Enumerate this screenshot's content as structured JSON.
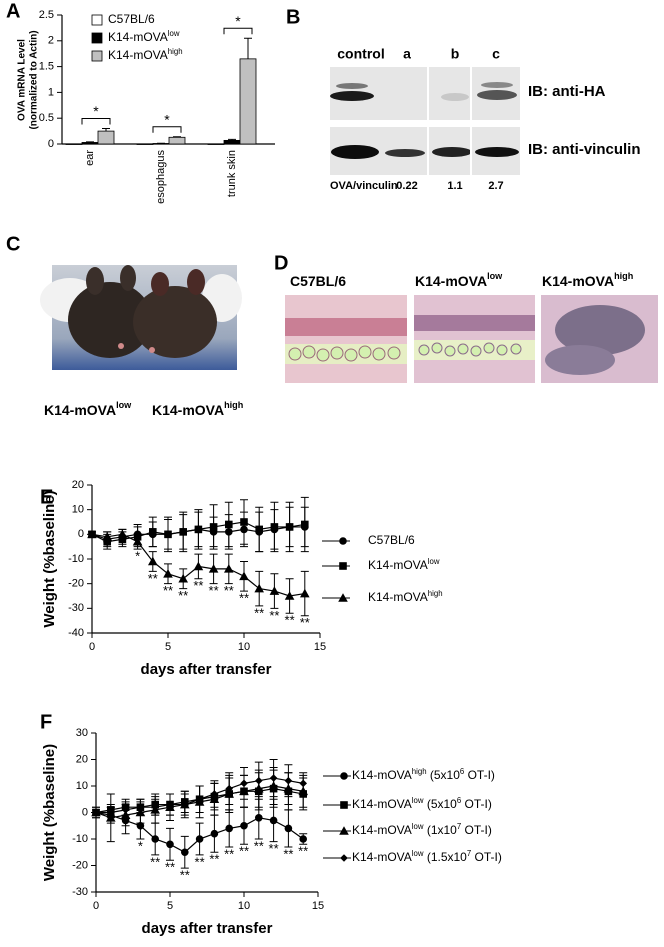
{
  "panels": [
    "A",
    "B",
    "C",
    "D",
    "E",
    "F"
  ],
  "chart_data": [
    {
      "type": "bar",
      "ylabel": [
        "OVA mRNA Level",
        "(normalized to Actin)"
      ],
      "categories": [
        "ear",
        "esophagus",
        "trunk skin"
      ],
      "series": [
        {
          "name_parts": [
            "C57BL/6"
          ],
          "color": "#ffffff",
          "values": [
            0,
            0,
            0
          ]
        },
        {
          "name_parts": [
            "K14-mOVA",
            "low"
          ],
          "color": "#000000",
          "values": [
            0.03,
            0.01,
            0.07
          ],
          "errors": [
            0.01,
            0.005,
            0.02
          ]
        },
        {
          "name_parts": [
            "K14-mOVA",
            "high"
          ],
          "color": "#c0c0c0",
          "values": [
            0.25,
            0.13,
            1.65
          ],
          "errors": [
            0.05,
            0.01,
            0.4
          ]
        }
      ],
      "significance": [
        "*",
        "*",
        "*"
      ],
      "ylim": [
        0,
        2.5
      ],
      "yticks": [
        0,
        0.5,
        1,
        1.5,
        2,
        2.5
      ]
    },
    {
      "type": "line",
      "xlabel": "days after transfer",
      "ylabel": "Weight (%baseline)",
      "x": [
        0,
        1,
        2,
        3,
        4,
        5,
        6,
        7,
        8,
        9,
        10,
        11,
        12,
        13,
        14
      ],
      "series": [
        {
          "name_parts": [
            "C57BL/6"
          ],
          "color": "#000000",
          "marker": "circle",
          "values": [
            0,
            -2,
            -1,
            0,
            0,
            0,
            1,
            2,
            1,
            1,
            2,
            1,
            2,
            3,
            3
          ],
          "errors": [
            1,
            3,
            3,
            4,
            5,
            6,
            7,
            7,
            6,
            7,
            7,
            8,
            8,
            8,
            8
          ]
        },
        {
          "name_parts": [
            "K14-mOVA",
            "low"
          ],
          "color": "#000000",
          "marker": "square",
          "values": [
            0,
            -3,
            -2,
            -1,
            1,
            0,
            1,
            2,
            3,
            4,
            5,
            2,
            3,
            3,
            4
          ],
          "errors": [
            1,
            3,
            3,
            4,
            6,
            7,
            8,
            8,
            9,
            9,
            9,
            9,
            10,
            10,
            11
          ]
        },
        {
          "name_parts": [
            "K14-mOVA",
            "high"
          ],
          "color": "#000000",
          "marker": "triangle",
          "values": [
            0,
            -1,
            0,
            -3,
            -11,
            -16,
            -18,
            -13,
            -14,
            -14,
            -17,
            -22,
            -23,
            -25,
            -24
          ],
          "errors": [
            1,
            2,
            2,
            3,
            4,
            4,
            4,
            5,
            6,
            6,
            6,
            7,
            7,
            7,
            9
          ]
        }
      ],
      "significance": [
        null,
        null,
        null,
        "*",
        "**",
        "**",
        "**",
        "**",
        "**",
        "**",
        "**",
        "**",
        "**",
        "**",
        "**"
      ],
      "xlim": [
        0,
        15
      ],
      "xticks": [
        0,
        5,
        10,
        15
      ],
      "ylim": [
        -40,
        20
      ],
      "yticks": [
        -40,
        -30,
        -20,
        -10,
        0,
        10,
        20
      ]
    },
    {
      "type": "line",
      "xlabel": "days after transfer",
      "ylabel": "Weight (%baseline)",
      "x": [
        0,
        1,
        2,
        3,
        4,
        5,
        6,
        7,
        8,
        9,
        10,
        11,
        12,
        13,
        14
      ],
      "series": [
        {
          "name_parts": [
            "K14-mOVA",
            "high",
            " (5x10",
            "6",
            " OT-I)"
          ],
          "color": "#000000",
          "marker": "circle",
          "values": [
            0,
            -1,
            -3,
            -5,
            -10,
            -12,
            -15,
            -10,
            -8,
            -6,
            -5,
            -2,
            -3,
            -6,
            -10
          ],
          "errors": [
            2,
            3,
            5,
            5,
            6,
            6,
            6,
            6,
            7,
            7,
            7,
            8,
            8,
            7,
            2
          ]
        },
        {
          "name_parts": [
            "K14-mOVA",
            "low",
            " (5x10",
            "6",
            " OT-I)"
          ],
          "color": "#000000",
          "marker": "square",
          "values": [
            0,
            1,
            2,
            2,
            3,
            3,
            4,
            5,
            6,
            7,
            8,
            8,
            9,
            8,
            7
          ],
          "errors": [
            1,
            2,
            3,
            3,
            4,
            4,
            4,
            5,
            5,
            6,
            6,
            7,
            7,
            7,
            6
          ]
        },
        {
          "name_parts": [
            "K14-mOVA",
            "low",
            " (1x10",
            "7",
            " OT-I)"
          ],
          "color": "#000000",
          "marker": "triangle",
          "values": [
            0,
            -2,
            -1,
            0,
            1,
            2,
            3,
            4,
            5,
            7,
            8,
            9,
            10,
            9,
            8
          ],
          "errors": [
            2,
            9,
            4,
            4,
            5,
            5,
            5,
            6,
            6,
            7,
            6,
            7,
            7,
            6,
            6
          ]
        },
        {
          "name_parts": [
            "K14-mOVA",
            "low",
            " (1.5x10",
            "7",
            " OT-I)"
          ],
          "color": "#000000",
          "marker": "diamond",
          "values": [
            0,
            0,
            1,
            2,
            2,
            3,
            3,
            5,
            7,
            9,
            11,
            12,
            13,
            12,
            11
          ],
          "errors": [
            1,
            2,
            3,
            3,
            3,
            4,
            4,
            5,
            5,
            6,
            6,
            7,
            7,
            6,
            4
          ]
        }
      ],
      "significance": [
        null,
        null,
        null,
        "*",
        "**",
        "**",
        "**",
        "**",
        "**",
        "**",
        "**",
        "**",
        "**",
        "**",
        "**"
      ],
      "xlim": [
        0,
        15
      ],
      "xticks": [
        0,
        5,
        10,
        15
      ],
      "ylim": [
        -30,
        30
      ],
      "yticks": [
        -30,
        -20,
        -10,
        0,
        10,
        20,
        30
      ]
    }
  ],
  "blot": {
    "lanes": [
      "control",
      "a",
      "b",
      "c"
    ],
    "antibodies": [
      "IB: anti-HA",
      "IB: anti-vinculin"
    ],
    "ratio_label": "OVA/vinculin",
    "ratios": [
      0.22,
      1.1,
      2.7
    ]
  },
  "photo": {
    "captions": [
      [
        "K14-mOVA",
        "low"
      ],
      [
        "K14-mOVA",
        "high"
      ]
    ]
  },
  "histology": {
    "labels": [
      [
        "C57BL/6"
      ],
      [
        "K14-mOVA",
        "low"
      ],
      [
        "K14-mOVA",
        "high"
      ]
    ]
  }
}
